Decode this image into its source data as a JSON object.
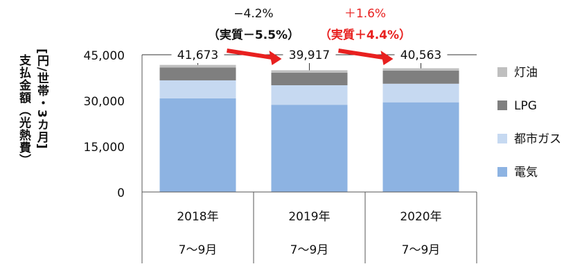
{
  "chart_data": {
    "type": "bar",
    "stacked": true,
    "ylabel_lines": [
      "支払金額（光熱費）",
      "[円/世帯・3カ月]"
    ],
    "ylim": [
      0,
      45000
    ],
    "yticks": [
      "0",
      "15,000",
      "30,000",
      "45,000"
    ],
    "categories": [
      {
        "year": "2018年",
        "period": "7～9月"
      },
      {
        "year": "2019年",
        "period": "7～9月"
      },
      {
        "year": "2020年",
        "period": "7～9月"
      }
    ],
    "series": [
      {
        "name": "電気",
        "color": "#8db3e2",
        "values": [
          30700,
          28600,
          29400
        ]
      },
      {
        "name": "都市ガス",
        "color": "#c6d9f1",
        "values": [
          5900,
          6400,
          6100
        ]
      },
      {
        "name": "LPG",
        "color": "#7f7f7f",
        "values": [
          4200,
          4100,
          4300
        ]
      },
      {
        "name": "灯油",
        "color": "#bfbfbf",
        "values": [
          873,
          817,
          763
        ]
      }
    ],
    "totals": [
      "41,673",
      "39,917",
      "40,563"
    ],
    "changes": [
      {
        "nominal": "−4.2%",
        "real": "（実質－5.5%）",
        "color": "#111111"
      },
      {
        "nominal": "＋1.6%",
        "real": "（実質＋4.4%）",
        "color": "#e8201f"
      }
    ],
    "arrow_color": "#e8201f",
    "grid": false,
    "legend_position": "right"
  }
}
